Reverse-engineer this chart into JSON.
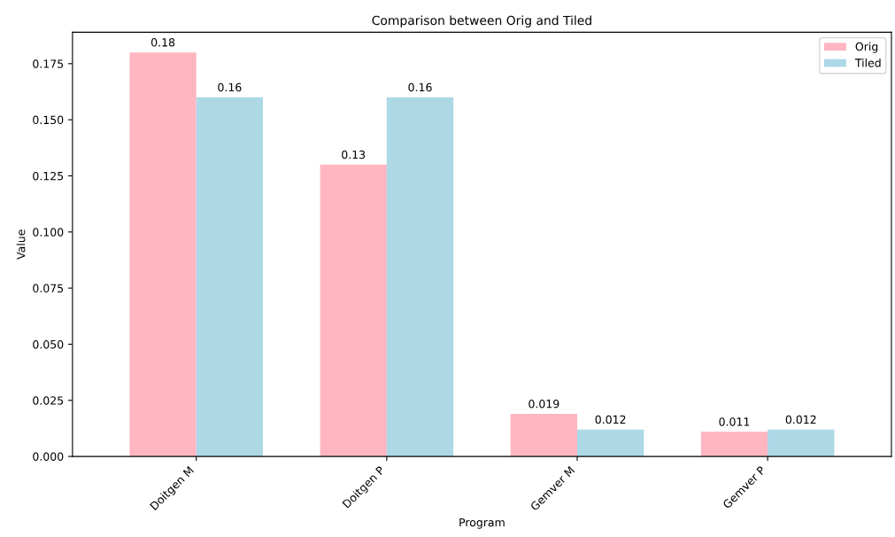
{
  "chart_data": {
    "type": "bar",
    "title": "Comparison between Orig and Tiled",
    "xlabel": "Program",
    "ylabel": "Value",
    "categories": [
      "Doitgen M",
      "Doitgen P",
      "Gemver M",
      "Gemver P"
    ],
    "series": [
      {
        "name": "Orig",
        "color": "#ffb6c1",
        "values": [
          0.18,
          0.13,
          0.019,
          0.011
        ]
      },
      {
        "name": "Tiled",
        "color": "#add8e6",
        "values": [
          0.16,
          0.16,
          0.012,
          0.012
        ]
      }
    ],
    "ylim": [
      0,
      0.189
    ],
    "yticks": [
      {
        "value": 0,
        "label": "0.000"
      },
      {
        "value": 0.025,
        "label": "0.025"
      },
      {
        "value": 0.05,
        "label": "0.050"
      },
      {
        "value": 0.075,
        "label": "0.075"
      },
      {
        "value": 0.1,
        "label": "0.100"
      },
      {
        "value": 0.125,
        "label": "0.125"
      },
      {
        "value": 0.15,
        "label": "0.150"
      },
      {
        "value": 0.175,
        "label": "0.175"
      }
    ],
    "data_labels": true,
    "legend": "top right",
    "grid": false
  }
}
